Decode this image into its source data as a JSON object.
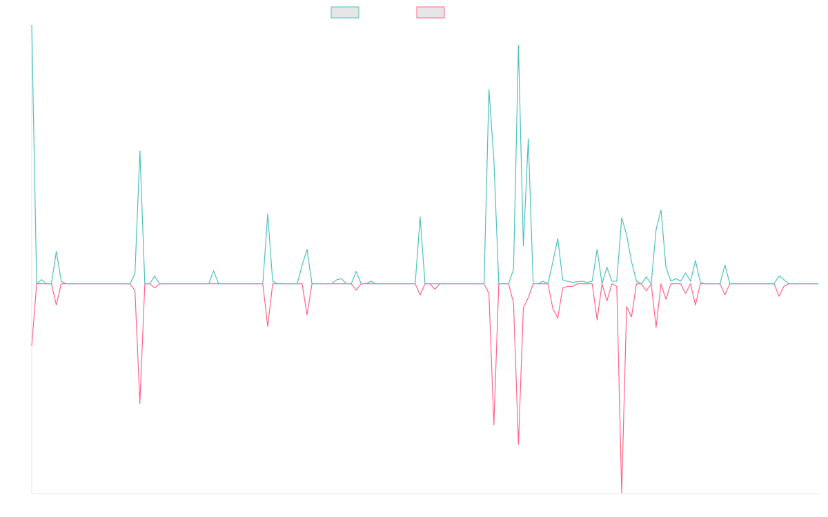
{
  "chart_data": {
    "type": "line",
    "categories": [
      null,
      null,
      null,
      null,
      null,
      null,
      null,
      null,
      null,
      null,
      null,
      null,
      null,
      null,
      null,
      null,
      null,
      null,
      null,
      null,
      null,
      null,
      null,
      null,
      null,
      null,
      null,
      null,
      null,
      null,
      null,
      null,
      null,
      null,
      null,
      null,
      null,
      null,
      null,
      null,
      null,
      null,
      null,
      null,
      null,
      null,
      null,
      null,
      null,
      null,
      null,
      null,
      null,
      null,
      null,
      null,
      null,
      null,
      null,
      null,
      null,
      null,
      null,
      null,
      null,
      null,
      null,
      null,
      null,
      null,
      null,
      null,
      null,
      null,
      null,
      null,
      null,
      null,
      null,
      null,
      null,
      null,
      null,
      null,
      null,
      null,
      null,
      null,
      null,
      null,
      null,
      null,
      null,
      null,
      null,
      null,
      null,
      null,
      null,
      null,
      null,
      null,
      null,
      null,
      null,
      null,
      null,
      null,
      null,
      null,
      null,
      null,
      null,
      null,
      null,
      null,
      null,
      null,
      null,
      null,
      null,
      null,
      null,
      null,
      null,
      null,
      null,
      null,
      null,
      null,
      null,
      null,
      null,
      null,
      null,
      null,
      null,
      null,
      null,
      null,
      null,
      null,
      null,
      null,
      null,
      null,
      null,
      null,
      null,
      null,
      null,
      null,
      null,
      null,
      null,
      null,
      null,
      null,
      null,
      null,
      null
    ],
    "series": [
      {
        "color": "#4bc0c0",
        "values": [
          100,
          0,
          1.6,
          0,
          0,
          12.5,
          1,
          0,
          0,
          0,
          0,
          0,
          0,
          0,
          0,
          0,
          0,
          0,
          0,
          0,
          0,
          4,
          51.3,
          0,
          0,
          3,
          0,
          0,
          0,
          0,
          0,
          0,
          0,
          0,
          0,
          0,
          0,
          5,
          0,
          0,
          0,
          0,
          0,
          0,
          0,
          0,
          0,
          0,
          27,
          1,
          0,
          0,
          0,
          0,
          0,
          7.2,
          13.3,
          0,
          0,
          0,
          0,
          0,
          1.5,
          2,
          0,
          0,
          4.8,
          0,
          0,
          1,
          0,
          0,
          0,
          0,
          0,
          0,
          0,
          0,
          0,
          25.8,
          0,
          0,
          0,
          0,
          0,
          0,
          0,
          0,
          0,
          0,
          0,
          0,
          0,
          75,
          47.9,
          0,
          0,
          0,
          5.6,
          92,
          14.6,
          56,
          0,
          0,
          1,
          0,
          8.5,
          17.5,
          1.5,
          1,
          0.5,
          0.8,
          1,
          0.5,
          1,
          13.3,
          0,
          6.4,
          1,
          1,
          25.5,
          19,
          8.5,
          1,
          0,
          2.7,
          0,
          21,
          28.5,
          6.4,
          1,
          2,
          1,
          4.2,
          1,
          9,
          0.5,
          0,
          0,
          0,
          0,
          7.2,
          0,
          0,
          0,
          0,
          0,
          0,
          0,
          0,
          0,
          0,
          3,
          1.6,
          0,
          0,
          0,
          0,
          0,
          0,
          0
        ]
      },
      {
        "color": "#ff6384",
        "values": [
          -24,
          0,
          0,
          0,
          0,
          -8.2,
          0,
          0,
          0,
          0,
          0,
          0,
          0,
          0,
          0,
          0,
          0,
          0,
          0,
          0,
          0,
          -2.7,
          -46.3,
          0,
          0,
          -1.6,
          0,
          0,
          0,
          0,
          0,
          0,
          0,
          0,
          0,
          0,
          0,
          0,
          0,
          0,
          0,
          0,
          0,
          0,
          0,
          0,
          0,
          0,
          -16.5,
          0,
          0,
          0,
          0,
          0,
          0,
          0,
          -12,
          0,
          0,
          0,
          0,
          0,
          0,
          0,
          0,
          0,
          -2.4,
          0,
          0,
          0,
          0,
          0,
          0,
          0,
          0,
          0,
          0,
          0,
          0,
          -4.3,
          0,
          0,
          -2.1,
          0,
          0,
          0,
          0,
          0,
          0,
          0,
          0,
          0,
          0,
          -3.7,
          -54.5,
          0,
          0,
          0,
          -7.4,
          -62,
          -9.3,
          -5.3,
          0,
          0,
          0,
          0,
          -9.6,
          -13.3,
          -1.6,
          -1,
          -1,
          0,
          0,
          0,
          0,
          -14,
          0,
          -6.6,
          0,
          -1,
          -80.8,
          -8.8,
          -12.8,
          0,
          0,
          -2.7,
          0,
          -16.8,
          0,
          -6,
          0,
          0,
          0,
          -3.7,
          0,
          -8.2,
          0,
          0,
          0,
          0,
          0,
          -4.3,
          0,
          0,
          0,
          0,
          0,
          0,
          0,
          0,
          0,
          0,
          -4.8,
          -1,
          0,
          0,
          0,
          0,
          0,
          0,
          0
        ]
      }
    ],
    "ylim": [
      -81,
      100
    ]
  }
}
